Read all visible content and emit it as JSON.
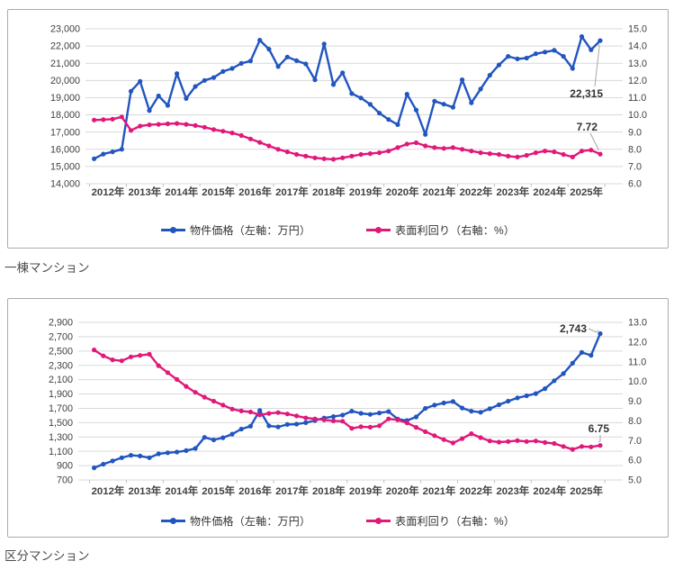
{
  "section_labels": {
    "building": "一棟マンション",
    "unit": "区分マンション"
  },
  "legend": {
    "price": "物件価格（左軸：万円）",
    "yield": "表面利回り（右軸：%）"
  },
  "colors": {
    "price": "#2155c0",
    "yield": "#e0187a",
    "grid": "#d9d9d9",
    "axis_line": "#bfbfbf",
    "axis_text": "#404040",
    "annotation_text": "#333333",
    "leader": "#a6a6a6",
    "panel_border": "#ababab"
  },
  "chart_data": [
    {
      "id": "building",
      "type": "line",
      "title": "一棟マンション",
      "x_labels": [
        "2012年",
        "2013年",
        "2014年",
        "2015年",
        "2016年",
        "2017年",
        "2018年",
        "2019年",
        "2020年",
        "2021年",
        "2022年",
        "2023年",
        "2024年",
        "2025年"
      ],
      "points_per_year": 4,
      "grid": true,
      "legend_position": "bottom",
      "left_axis": {
        "min": 14000,
        "max": 23000,
        "step": 1000,
        "ticks": [
          "23,000",
          "22,000",
          "21,000",
          "20,000",
          "19,000",
          "18,000",
          "17,000",
          "16,000",
          "15,000",
          "14,000"
        ]
      },
      "right_axis": {
        "min": 6.0,
        "max": 15.0,
        "step": 1.0,
        "ticks": [
          "15.0",
          "14.0",
          "13.0",
          "12.0",
          "11.0",
          "10.0",
          "9.0",
          "8.0",
          "7.0",
          "6.0"
        ]
      },
      "series": [
        {
          "name": "物件価格（左軸：万円）",
          "axis": "left",
          "values": [
            15450,
            15720,
            15850,
            16000,
            19375,
            19950,
            18250,
            19100,
            18550,
            20400,
            18950,
            19650,
            20000,
            20170,
            20520,
            20700,
            20990,
            21130,
            22340,
            21820,
            20810,
            21360,
            21150,
            20960,
            20040,
            22120,
            19760,
            20440,
            19240,
            18980,
            18610,
            18100,
            17730,
            17430,
            19200,
            18280,
            16860,
            18800,
            18620,
            18440,
            20040,
            18700,
            19500,
            20300,
            20900,
            21400,
            21250,
            21300,
            21550,
            21650,
            21750,
            21400,
            20700,
            22550,
            21780,
            22315
          ]
        },
        {
          "name": "表面利回り（右軸：%）",
          "axis": "right",
          "values": [
            9.7,
            9.72,
            9.75,
            9.88,
            9.1,
            9.35,
            9.42,
            9.45,
            9.48,
            9.5,
            9.45,
            9.38,
            9.28,
            9.15,
            9.05,
            8.95,
            8.8,
            8.6,
            8.4,
            8.2,
            8.0,
            7.85,
            7.7,
            7.6,
            7.5,
            7.45,
            7.42,
            7.5,
            7.6,
            7.7,
            7.75,
            7.8,
            7.9,
            8.1,
            8.3,
            8.38,
            8.2,
            8.1,
            8.05,
            8.1,
            8.0,
            7.9,
            7.8,
            7.75,
            7.7,
            7.6,
            7.55,
            7.65,
            7.8,
            7.9,
            7.85,
            7.7,
            7.55,
            7.9,
            7.95,
            7.72
          ]
        }
      ],
      "annotations": [
        {
          "text": "22,315",
          "series": 0,
          "point": 55,
          "label_x": 661,
          "label_y": 97,
          "leader": [
            652,
            85,
            657,
            41
          ]
        },
        {
          "text": "7.72",
          "series": 1,
          "point": 55,
          "label_x": 655,
          "label_y": 134,
          "leader": [
            647,
            137,
            656,
            155
          ]
        }
      ]
    },
    {
      "id": "unit",
      "type": "line",
      "title": "区分マンション",
      "x_labels": [
        "2012年",
        "2013年",
        "2014年",
        "2015年",
        "2016年",
        "2017年",
        "2018年",
        "2019年",
        "2020年",
        "2021年",
        "2022年",
        "2023年",
        "2024年",
        "2025年"
      ],
      "points_per_year": 4,
      "grid": true,
      "legend_position": "bottom",
      "left_axis": {
        "min": 700,
        "max": 2900,
        "step": 200,
        "ticks": [
          "2,900",
          "2,700",
          "2,500",
          "2,300",
          "2,100",
          "1,900",
          "1,700",
          "1,500",
          "1,300",
          "1,100",
          "900",
          "700"
        ]
      },
      "right_axis": {
        "min": 5.0,
        "max": 13.0,
        "step": 1.0,
        "ticks": [
          "13.0",
          "12.0",
          "11.0",
          "10.0",
          "9.0",
          "8.0",
          "7.0",
          "6.0",
          "5.0"
        ]
      },
      "series": [
        {
          "name": "物件価格（左軸：万円）",
          "axis": "left",
          "values": [
            870,
            920,
            965,
            1010,
            1045,
            1035,
            1010,
            1065,
            1080,
            1090,
            1110,
            1140,
            1295,
            1260,
            1290,
            1340,
            1410,
            1450,
            1670,
            1455,
            1440,
            1475,
            1480,
            1500,
            1530,
            1565,
            1585,
            1605,
            1660,
            1630,
            1615,
            1635,
            1655,
            1550,
            1530,
            1580,
            1700,
            1745,
            1775,
            1795,
            1705,
            1660,
            1645,
            1695,
            1750,
            1800,
            1845,
            1875,
            1905,
            1975,
            2085,
            2185,
            2330,
            2480,
            2440,
            2743
          ]
        },
        {
          "name": "表面利回り（右軸：%）",
          "axis": "right",
          "values": [
            11.6,
            11.3,
            11.1,
            11.05,
            11.25,
            11.32,
            11.38,
            10.8,
            10.45,
            10.1,
            9.75,
            9.45,
            9.2,
            9.0,
            8.8,
            8.6,
            8.5,
            8.45,
            8.3,
            8.38,
            8.42,
            8.35,
            8.25,
            8.15,
            8.1,
            8.05,
            8.0,
            7.98,
            7.62,
            7.7,
            7.68,
            7.75,
            8.1,
            8.05,
            7.9,
            7.67,
            7.45,
            7.25,
            7.05,
            6.88,
            7.1,
            7.35,
            7.15,
            6.98,
            6.92,
            6.95,
            7.0,
            6.95,
            6.98,
            6.9,
            6.85,
            6.7,
            6.55,
            6.7,
            6.68,
            6.75
          ]
        }
      ],
      "annotations": [
        {
          "text": "2,743",
          "series": 0,
          "point": 55,
          "label_x": 643,
          "label_y": 37,
          "leader": [
            645,
            33,
            654,
            37
          ]
        },
        {
          "text": "6.75",
          "series": 1,
          "point": 55,
          "label_x": 668,
          "label_y": 148,
          "leader": [
            658,
            151,
            658,
            158
          ]
        }
      ]
    }
  ]
}
